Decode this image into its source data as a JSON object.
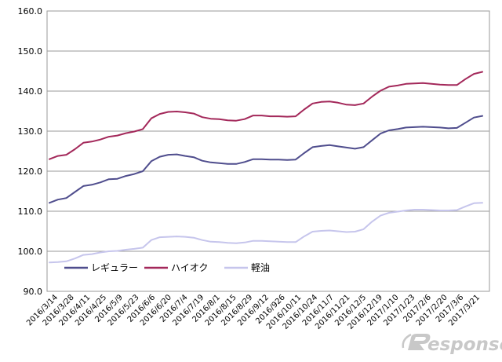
{
  "chart_data": {
    "type": "line",
    "title": "",
    "xlabel": "",
    "ylabel": "",
    "ylim": [
      90,
      160
    ],
    "y_ticks": [
      "90.0",
      "100.0",
      "110.0",
      "120.0",
      "130.0",
      "140.0",
      "150.0",
      "160.0"
    ],
    "grid": "horizontal",
    "legend_position": "lower-left inside plot",
    "x_tick_labels": [
      "2016/3/14",
      "2016/3/28",
      "2016/4/11",
      "2016/4/25",
      "2016/5/9",
      "2016/5/23",
      "2016/6/6",
      "2016/6/20",
      "2016/7/4",
      "2016/7/19",
      "2016/8/1",
      "2016/8/15",
      "2016/8/29",
      "2016/9/12",
      "2016/926",
      "2016/10/11",
      "2016/10/24",
      "2016/11/7",
      "2016/11/21",
      "2016/12/5",
      "2016/12/19",
      "2017/1/10",
      "2017/1/23",
      "2017/2/6",
      "2017/2/20",
      "2017/3/6",
      "2017/3/21"
    ],
    "series": [
      {
        "name": "レギュラー",
        "color": "#4f4d8d",
        "values": [
          112.1,
          112.9,
          113.3,
          114.8,
          116.3,
          116.6,
          117.2,
          118.0,
          118.1,
          118.8,
          119.3,
          120.0,
          122.5,
          123.6,
          124.1,
          124.2,
          123.8,
          123.5,
          122.6,
          122.2,
          122.0,
          121.8,
          121.8,
          122.3,
          123.0,
          123.0,
          122.9,
          122.9,
          122.8,
          122.9,
          124.5,
          126.0,
          126.3,
          126.5,
          126.2,
          125.9,
          125.6,
          126.0,
          127.7,
          129.4,
          130.2,
          130.5,
          130.9,
          131.0,
          131.1,
          131.0,
          130.9,
          130.7,
          130.8,
          132.1,
          133.4,
          133.8
        ]
      },
      {
        "name": "ハイオク",
        "color": "#a3285a",
        "values": [
          123.0,
          123.8,
          124.1,
          125.5,
          127.1,
          127.4,
          127.9,
          128.6,
          128.9,
          129.5,
          129.9,
          130.5,
          133.2,
          134.3,
          134.8,
          134.9,
          134.7,
          134.4,
          133.5,
          133.1,
          133.0,
          132.7,
          132.6,
          133.0,
          133.9,
          133.9,
          133.7,
          133.7,
          133.6,
          133.7,
          135.4,
          136.9,
          137.3,
          137.4,
          137.1,
          136.6,
          136.5,
          136.9,
          138.6,
          140.1,
          141.1,
          141.4,
          141.8,
          141.9,
          142.0,
          141.8,
          141.6,
          141.5,
          141.5,
          143.0,
          144.3,
          144.8
        ]
      },
      {
        "name": "軽油",
        "color": "#c6c5ec",
        "values": [
          97.2,
          97.3,
          97.5,
          98.2,
          99.1,
          99.3,
          99.7,
          100.0,
          100.1,
          100.4,
          100.6,
          100.9,
          102.8,
          103.5,
          103.6,
          103.7,
          103.6,
          103.4,
          102.8,
          102.4,
          102.3,
          102.1,
          102.0,
          102.2,
          102.6,
          102.6,
          102.5,
          102.4,
          102.3,
          102.3,
          103.7,
          104.9,
          105.1,
          105.2,
          105.0,
          104.8,
          104.9,
          105.5,
          107.4,
          108.9,
          109.6,
          109.9,
          110.2,
          110.4,
          110.4,
          110.3,
          110.2,
          110.2,
          110.3,
          111.2,
          112.0,
          112.1
        ]
      }
    ]
  },
  "watermark": {
    "text": "esponse.",
    "color": "#c8c8c8"
  }
}
